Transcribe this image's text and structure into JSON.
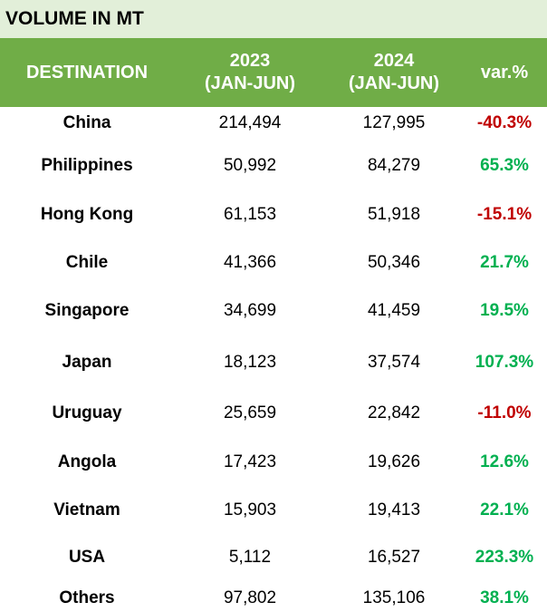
{
  "title": "VOLUME IN MT",
  "header": {
    "destination": "DESTINATION",
    "col1_year": "2023",
    "col1_period": "(JAN-JUN)",
    "col2_year": "2024",
    "col2_period": "(JAN-JUN)",
    "var": "var.%"
  },
  "colors": {
    "header_bg": "#70ad47",
    "title_bg": "#e2efd9",
    "negative": "#c00000",
    "positive": "#00b050"
  },
  "chart_data": {
    "type": "table",
    "columns": [
      "DESTINATION",
      "2023 (JAN-JUN)",
      "2024 (JAN-JUN)",
      "var.%"
    ],
    "rows": [
      {
        "destination": "China",
        "v2023": "214,494",
        "v2024": "127,995",
        "var": "-40.3%"
      },
      {
        "destination": "Philippines",
        "v2023": "50,992",
        "v2024": "84,279",
        "var": "65.3%"
      },
      {
        "destination": "Hong Kong",
        "v2023": "61,153",
        "v2024": "51,918",
        "var": "-15.1%"
      },
      {
        "destination": "Chile",
        "v2023": "41,366",
        "v2024": "50,346",
        "var": "21.7%"
      },
      {
        "destination": "Singapore",
        "v2023": "34,699",
        "v2024": "41,459",
        "var": "19.5%"
      },
      {
        "destination": "Japan",
        "v2023": "18,123",
        "v2024": "37,574",
        "var": "107.3%"
      },
      {
        "destination": "Uruguay",
        "v2023": "25,659",
        "v2024": "22,842",
        "var": "-11.0%"
      },
      {
        "destination": "Angola",
        "v2023": "17,423",
        "v2024": "19,626",
        "var": "12.6%"
      },
      {
        "destination": "Vietnam",
        "v2023": "15,903",
        "v2024": "19,413",
        "var": "22.1%"
      },
      {
        "destination": "USA",
        "v2023": "5,112",
        "v2024": "16,527",
        "var": "223.3%"
      },
      {
        "destination": "Others",
        "v2023": "97,802",
        "v2024": "135,106",
        "var": "38.1%"
      }
    ]
  }
}
